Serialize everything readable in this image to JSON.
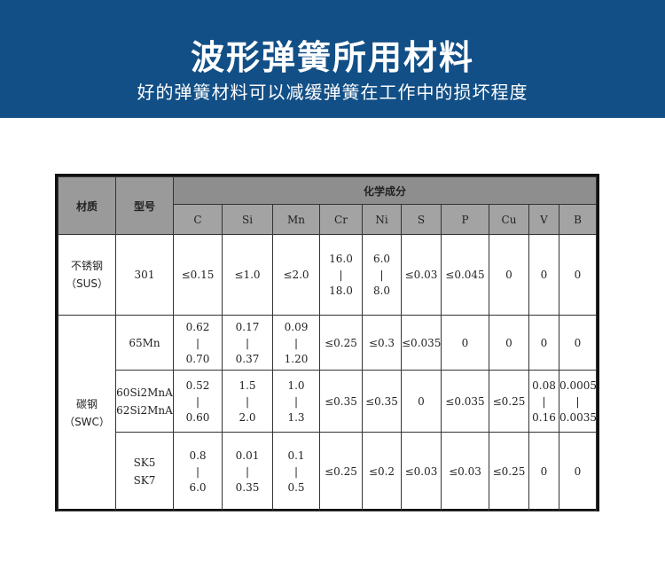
{
  "banner": {
    "title": "波形弹簧所用材料",
    "subtitle": "好的弹簧材料可以减缓弹簧在工作中的损坏程度",
    "bg_color": "#124f86"
  },
  "table": {
    "header": {
      "material": "材质",
      "model": "型号",
      "composition": "化学成分",
      "elements": [
        "C",
        "Si",
        "Mn",
        "Cr",
        "Ni",
        "S",
        "P",
        "Cu",
        "V",
        "B"
      ]
    },
    "groups": [
      {
        "material": [
          "不锈钢",
          "（SUS）"
        ],
        "rows": [
          {
            "model": [
              "301"
            ],
            "values": [
              [
                "≤0.15"
              ],
              [
                "≤1.0"
              ],
              [
                "≤2.0"
              ],
              [
                "16.0",
                "18.0"
              ],
              [
                "6.0",
                "8.0"
              ],
              [
                "≤0.03"
              ],
              [
                "≤0.045"
              ],
              [
                "0"
              ],
              [
                "0"
              ],
              [
                "0"
              ]
            ]
          }
        ]
      },
      {
        "material": [
          "碳钢",
          "（SWC）"
        ],
        "rows": [
          {
            "model": [
              "65Mn"
            ],
            "values": [
              [
                "0.62",
                "0.70"
              ],
              [
                "0.17",
                "0.37"
              ],
              [
                "0.09",
                "1.20"
              ],
              [
                "≤0.25"
              ],
              [
                "≤0.3"
              ],
              [
                "≤0.035"
              ],
              [
                "0"
              ],
              [
                "0"
              ],
              [
                "0"
              ],
              [
                "0"
              ]
            ]
          },
          {
            "model": [
              "60Si2MnA",
              "62Si2MnA"
            ],
            "values": [
              [
                "0.52",
                "0.60"
              ],
              [
                "1.5",
                "2.0"
              ],
              [
                "1.0",
                "1.3"
              ],
              [
                "≤0.35"
              ],
              [
                "≤0.35"
              ],
              [
                "0"
              ],
              [
                "≤0.035"
              ],
              [
                "≤0.25"
              ],
              [
                "0.08",
                "0.16"
              ],
              [
                "0.0005",
                "0.0035"
              ]
            ]
          },
          {
            "model": [
              "SK5",
              "SK7"
            ],
            "values": [
              [
                "0.8",
                "6.0"
              ],
              [
                "0.01",
                "0.35"
              ],
              [
                "0.1",
                "0.5"
              ],
              [
                "≤0.25"
              ],
              [
                "≤0.2"
              ],
              [
                "≤0.03"
              ],
              [
                "≤0.03"
              ],
              [
                "≤0.25"
              ],
              [
                "0"
              ],
              [
                "0"
              ]
            ]
          }
        ]
      }
    ]
  }
}
